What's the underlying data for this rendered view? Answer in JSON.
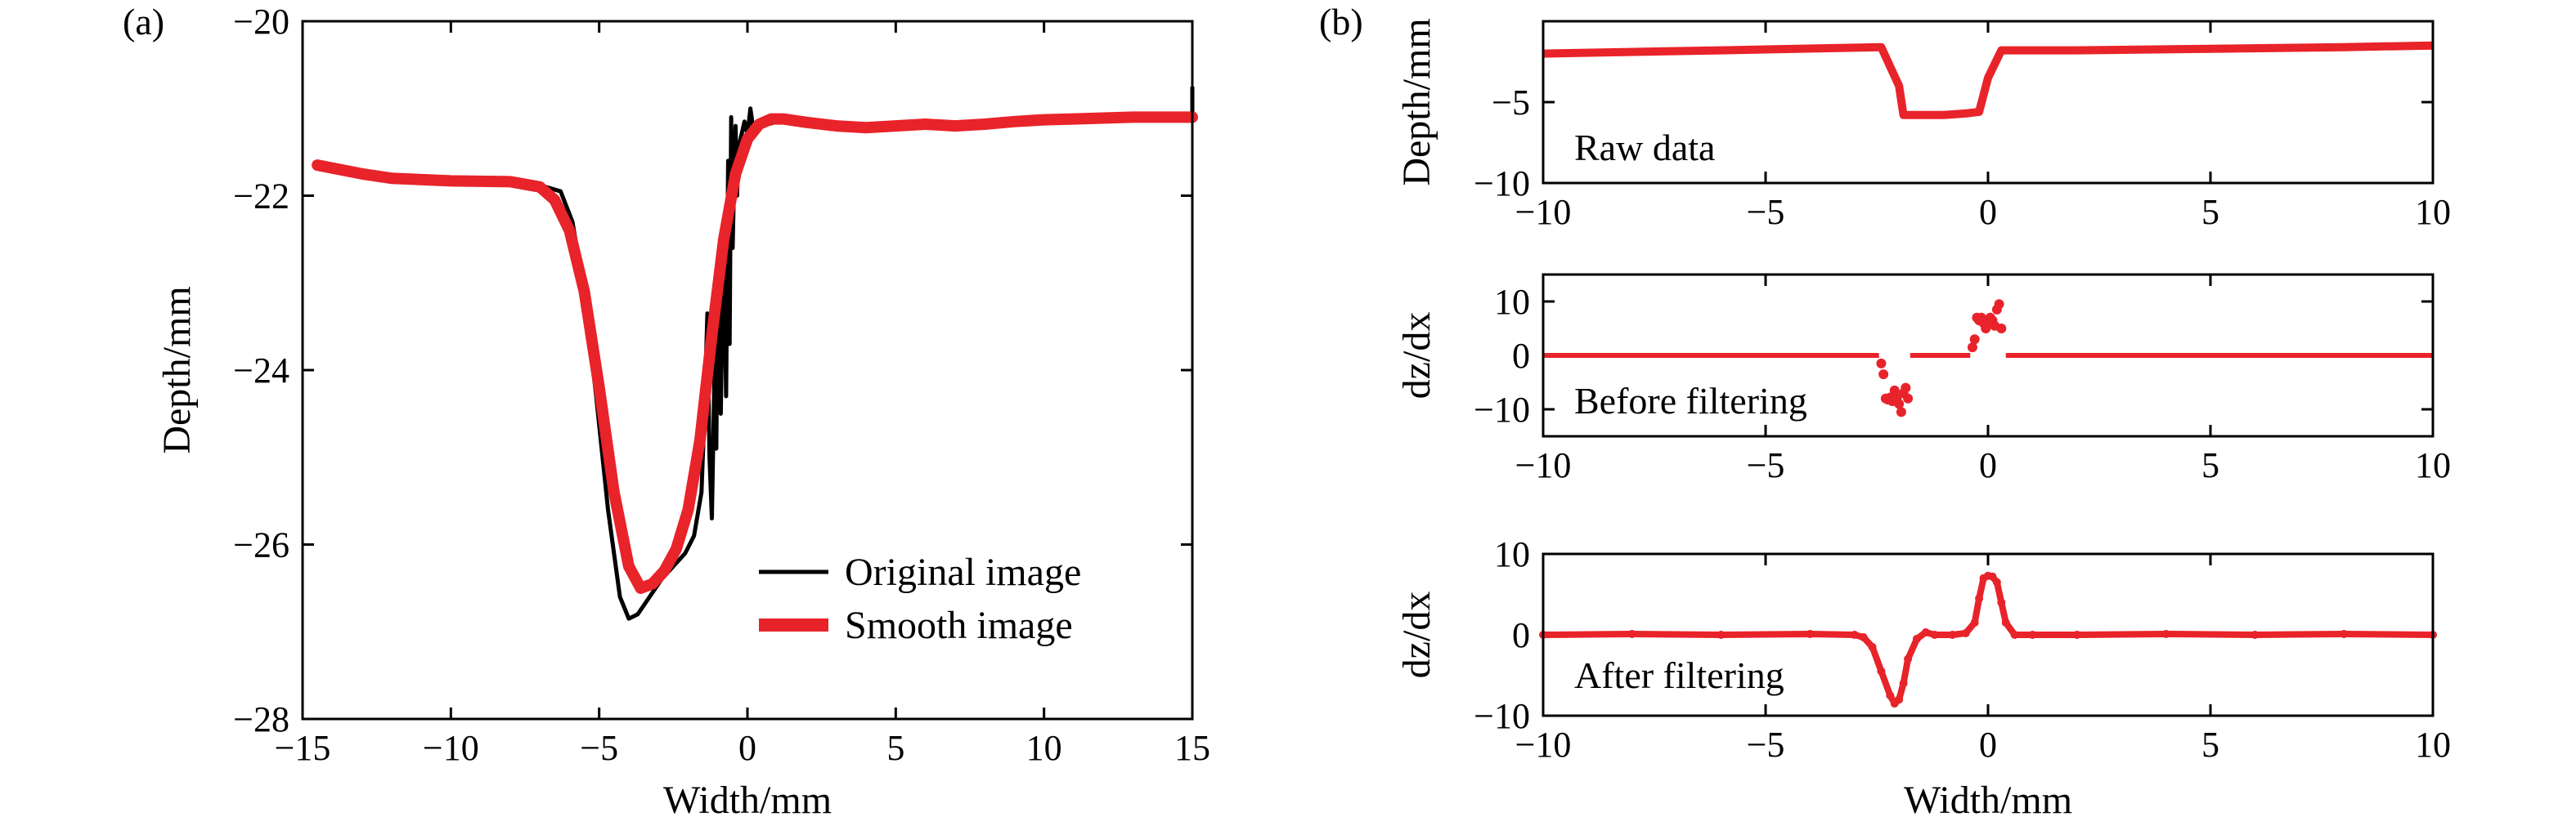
{
  "chart_data": [
    {
      "panel_label": "(a)",
      "type": "line",
      "xlabel": "Width/mm",
      "ylabel": "Depth/mm",
      "xlim": [
        -15,
        15
      ],
      "ylim": [
        -28,
        -20
      ],
      "xticks": [
        -15,
        -10,
        -5,
        0,
        5,
        10,
        15
      ],
      "xtick_labels": [
        "−15",
        "−10",
        "−5",
        "0",
        "5",
        "10",
        "15"
      ],
      "yticks": [
        -28,
        -26,
        -24,
        -22,
        -20
      ],
      "ytick_labels": [
        "−28",
        "−26",
        "−24",
        "−22",
        "−20"
      ],
      "legend_position": "bottom-right",
      "series": [
        {
          "name": "Original image",
          "color": "#000000",
          "x": [
            -14.5,
            -12,
            -10,
            -8,
            -7,
            -6.3,
            -5.9,
            -5.5,
            -5.1,
            -4.7,
            -4.3,
            -4.0,
            -3.7,
            -3.3,
            -2.9,
            -2.5,
            -2.1,
            -1.8,
            -1.55,
            -1.45,
            -1.35,
            -1.28,
            -1.2,
            -1.1,
            -1.05,
            -1.0,
            -0.9,
            -0.8,
            -0.72,
            -0.65,
            -0.6,
            -0.55,
            -0.5,
            -0.45,
            -0.4,
            -0.35,
            -0.3,
            -0.2,
            -0.1,
            0,
            0.1,
            0.2,
            0.5,
            1,
            2,
            3,
            5,
            7,
            9,
            11,
            13,
            15,
            15
          ],
          "y": [
            -21.65,
            -21.8,
            -21.83,
            -21.84,
            -21.88,
            -21.95,
            -22.3,
            -23.1,
            -24.3,
            -25.6,
            -26.6,
            -26.85,
            -26.8,
            -26.6,
            -26.4,
            -26.25,
            -26.1,
            -25.9,
            -25.4,
            -24.5,
            -23.35,
            -25.0,
            -25.7,
            -23.8,
            -24.9,
            -23.0,
            -24.5,
            -22.3,
            -24.3,
            -21.6,
            -23.7,
            -21.1,
            -22.6,
            -21.8,
            -21.2,
            -22.0,
            -21.45,
            -21.3,
            -21.15,
            -21.3,
            -21.0,
            -21.25,
            -21.2,
            -21.15,
            -21.15,
            -21.2,
            -21.2,
            -21.2,
            -21.12,
            -21.1,
            -21.08,
            -21.08,
            -20.75
          ]
        },
        {
          "name": "Smooth image",
          "color": "#e8232a",
          "x": [
            -14.5,
            -13,
            -12,
            -10,
            -8,
            -7,
            -6.5,
            -6,
            -5.5,
            -5,
            -4.5,
            -4,
            -3.6,
            -3.2,
            -2.8,
            -2.4,
            -2,
            -1.6,
            -1.2,
            -0.8,
            -0.4,
            0,
            0.4,
            0.8,
            1.2,
            1.6,
            2,
            3,
            4,
            5,
            6,
            7,
            8,
            9,
            10,
            11,
            12,
            13,
            14,
            15
          ],
          "y": [
            -21.65,
            -21.75,
            -21.8,
            -21.83,
            -21.84,
            -21.9,
            -22.05,
            -22.4,
            -23.1,
            -24.2,
            -25.4,
            -26.25,
            -26.5,
            -26.45,
            -26.3,
            -26.05,
            -25.6,
            -24.8,
            -23.6,
            -22.5,
            -21.75,
            -21.35,
            -21.18,
            -21.12,
            -21.12,
            -21.14,
            -21.16,
            -21.2,
            -21.22,
            -21.2,
            -21.18,
            -21.2,
            -21.18,
            -21.15,
            -21.13,
            -21.12,
            -21.11,
            -21.1,
            -21.1,
            -21.1
          ]
        }
      ]
    },
    {
      "panel_label": "(b)",
      "type": "scatter",
      "ylabel": "Depth/mm",
      "xlim": [
        -10,
        10
      ],
      "ylim": [
        -10,
        0
      ],
      "xticks": [
        -10,
        -5,
        0,
        5,
        10
      ],
      "xtick_labels": [
        "−10",
        "−5",
        "0",
        "5",
        "10"
      ],
      "yticks": [
        -10,
        -5
      ],
      "ytick_labels": [
        "−10",
        "−5"
      ],
      "annotation": "Raw data",
      "series": [
        {
          "color": "#e8232a",
          "x": [
            -10,
            -6,
            -2.4,
            -2.0,
            -1.9,
            -1.5,
            -1.0,
            -0.5,
            -0.2,
            0,
            0.3,
            2,
            5,
            8,
            10
          ],
          "y": [
            -2.0,
            -1.8,
            -1.6,
            -4.0,
            -5.8,
            -5.8,
            -5.8,
            -5.7,
            -5.6,
            -3.5,
            -1.8,
            -1.8,
            -1.7,
            -1.6,
            -1.5
          ]
        }
      ]
    },
    {
      "type": "scatter",
      "ylabel": "dz/dx",
      "xlim": [
        -10,
        10
      ],
      "ylim": [
        -15,
        15
      ],
      "xticks": [
        -10,
        -5,
        0,
        5,
        10
      ],
      "xtick_labels": [
        "−10",
        "−5",
        "0",
        "5",
        "10"
      ],
      "yticks": [
        -10,
        0,
        10
      ],
      "ytick_labels": [
        "−10",
        "0",
        "10"
      ],
      "annotation": "Before filtering",
      "series": [
        {
          "color": "#e8232a",
          "x": [
            -2.4,
            -2.35,
            -2.3,
            -2.25,
            -2.2,
            -2.15,
            -2.1,
            -2.05,
            -2.0,
            -1.95,
            -1.9,
            -1.85,
            -1.8,
            -0.35,
            -0.3,
            -0.25,
            -0.2,
            -0.15,
            -0.1,
            -0.05,
            0.0,
            0.05,
            0.1,
            0.15,
            0.2,
            0.25,
            0.3
          ],
          "y": [
            -1.5,
            -3.5,
            -8.0,
            -8.2,
            -7.8,
            -8.5,
            -6.5,
            -8.0,
            -9.0,
            -10.5,
            -7.0,
            -6.0,
            -8.0,
            1.5,
            3.0,
            7.0,
            6.5,
            7.0,
            6.0,
            5.0,
            6.5,
            7.0,
            6.5,
            5.5,
            8.5,
            9.5,
            5.0
          ]
        }
      ]
    },
    {
      "type": "line",
      "xlabel": "Width/mm",
      "ylabel": "dz/dx",
      "xlim": [
        -10,
        10
      ],
      "ylim": [
        -10,
        10
      ],
      "xticks": [
        -10,
        -5,
        0,
        5,
        10
      ],
      "xtick_labels": [
        "−10",
        "−5",
        "0",
        "5",
        "10"
      ],
      "yticks": [
        -10,
        0,
        10
      ],
      "ytick_labels": [
        "−10",
        "0",
        "10"
      ],
      "annotation": "After filtering",
      "series": [
        {
          "color": "#e8232a",
          "x": [
            -10,
            -8,
            -6,
            -4,
            -3,
            -2.8,
            -2.6,
            -2.4,
            -2.2,
            -2.1,
            -2.0,
            -1.9,
            -1.8,
            -1.6,
            -1.4,
            -1.2,
            -0.8,
            -0.5,
            -0.3,
            -0.2,
            -0.1,
            0,
            0.1,
            0.2,
            0.3,
            0.4,
            0.6,
            1.0,
            2,
            4,
            6,
            8,
            10
          ],
          "y": [
            0,
            0.1,
            0,
            0.1,
            0,
            -0.3,
            -1.5,
            -4.5,
            -7.5,
            -8.5,
            -8.0,
            -6.0,
            -3.0,
            -0.5,
            0.3,
            0,
            0,
            0.2,
            1.5,
            4.5,
            7.0,
            7.3,
            7.2,
            6.5,
            4.0,
            1.5,
            0,
            0,
            0,
            0.1,
            0,
            0.1,
            0
          ]
        }
      ]
    }
  ]
}
